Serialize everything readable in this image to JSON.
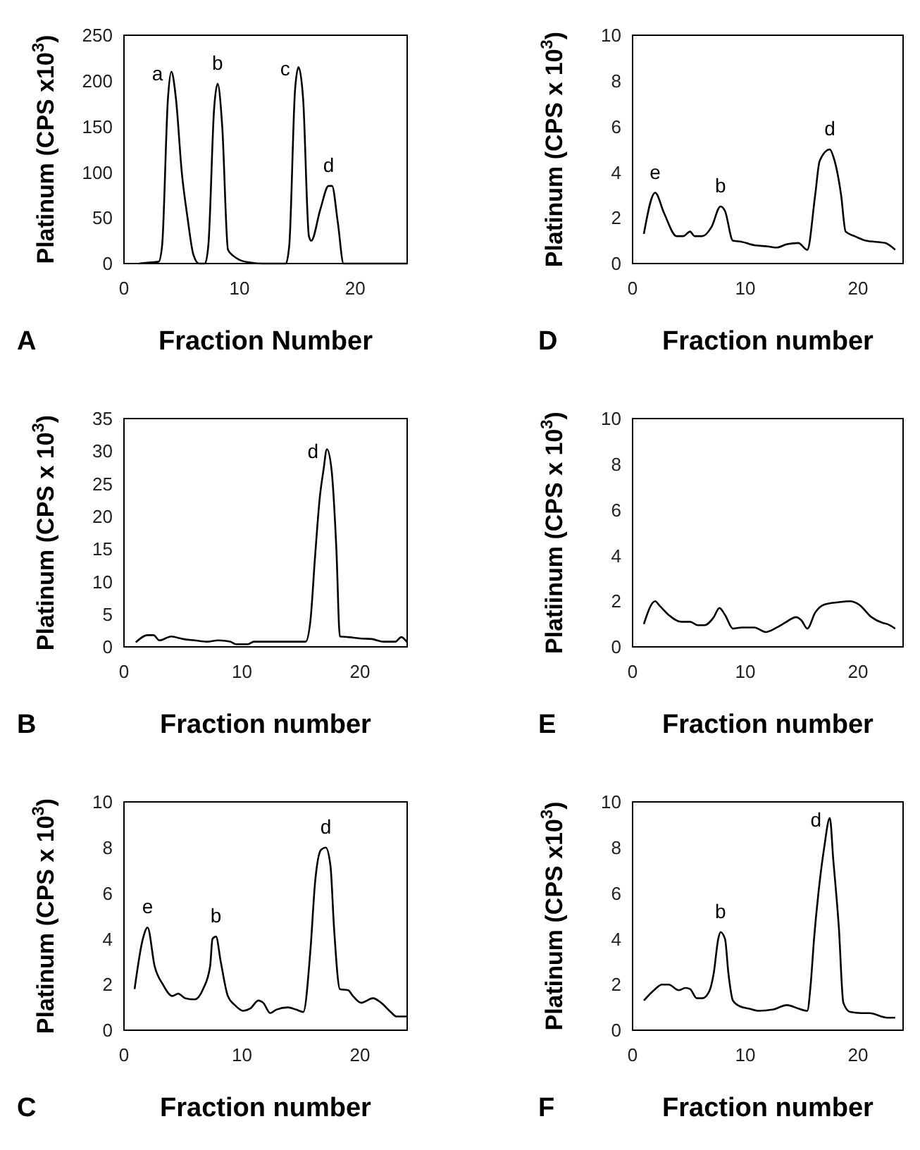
{
  "chart_data": [
    {
      "type": "line",
      "xlabel": "Fraction Number",
      "ylabel": "Platinum (CPS x10$^{3}$)",
      "xlim": [
        0,
        24.5
      ],
      "xticks": [
        0,
        10,
        20
      ],
      "ylim": [
        0,
        250
      ],
      "yticks": [
        0,
        50,
        100,
        150,
        200,
        250
      ],
      "grid": false,
      "annotations": [
        "A",
        {
          "text": "a",
          "x": 4.1,
          "y": 210
        },
        {
          "text": "b",
          "x": 8.1,
          "y": 197
        },
        {
          "text": "c",
          "x": 15.1,
          "y": 215
        },
        {
          "text": "d",
          "x": 17.7,
          "y": 85
        }
      ],
      "x": [
        1.3,
        2,
        3,
        3.3,
        3.8,
        4.1,
        4.5,
        5,
        5.5,
        6,
        6.5,
        7,
        7.3,
        7.8,
        8.1,
        8.5,
        9,
        9.5,
        10,
        11,
        12,
        14,
        14.3,
        14.8,
        15.1,
        15.5,
        16,
        16.2,
        17,
        17.7,
        18,
        18.5,
        19,
        24.5
      ],
      "series": [
        {
          "color": "#000000",
          "values": [
            0,
            1,
            2,
            20,
            180,
            210,
            180,
            100,
            50,
            10,
            0,
            0,
            20,
            170,
            197,
            150,
            15,
            8,
            4,
            1,
            0,
            0,
            20,
            190,
            215,
            180,
            30,
            25,
            60,
            85,
            85,
            45,
            0,
            0
          ]
        }
      ]
    },
    {
      "type": "line",
      "xlabel": "Fraction number",
      "ylabel": "Platinum (CPS x 10$^{3}$)",
      "xlim": [
        0,
        24
      ],
      "xticks": [
        0,
        10,
        20
      ],
      "ylim": [
        0,
        10
      ],
      "yticks": [
        0,
        2,
        4,
        6,
        8,
        10
      ],
      "grid": false,
      "annotations": [
        "D",
        {
          "text": "e",
          "x": 2,
          "y": 3.1
        },
        {
          "text": "b",
          "x": 7.8,
          "y": 2.5
        },
        {
          "text": "d",
          "x": 17.5,
          "y": 5.0
        }
      ],
      "x": [
        1,
        2,
        2.8,
        3.9,
        4.5,
        5.1,
        5.5,
        6.2,
        7,
        7.8,
        8.2,
        8.9,
        9.7,
        10.8,
        12,
        12.8,
        13.7,
        14.7,
        15.5,
        16.2,
        16.6,
        17.5,
        17.8,
        18.5,
        18.9,
        19.7,
        20.7,
        22.4,
        23.3
      ],
      "series": [
        {
          "color": "#000000",
          "values": [
            1.3,
            3.1,
            2.2,
            1.2,
            1.2,
            1.4,
            1.2,
            1.2,
            1.6,
            2.5,
            2.3,
            1.0,
            0.95,
            0.8,
            0.75,
            0.7,
            0.85,
            0.9,
            0.6,
            3.0,
            4.5,
            5.0,
            4.7,
            3.0,
            1.4,
            1.2,
            1.0,
            0.9,
            0.6
          ]
        }
      ]
    },
    {
      "type": "line",
      "xlabel": "Fraction number",
      "ylabel": "Platinum (CPS x 10$^{3}$)",
      "xlim": [
        0,
        24
      ],
      "xticks": [
        0,
        10,
        20
      ],
      "ylim": [
        0,
        35
      ],
      "yticks": [
        0,
        5,
        10,
        15,
        20,
        25,
        30,
        35
      ],
      "grid": false,
      "annotations": [
        "B",
        {
          "text": "d",
          "x": 17.2,
          "y": 30.3
        }
      ],
      "x": [
        1,
        2,
        2.5,
        3,
        4,
        5,
        6,
        7,
        8,
        9,
        9.5,
        10.5,
        11,
        15.4,
        15.8,
        16.2,
        16.6,
        16.9,
        17.2,
        17.6,
        18,
        18.3,
        19,
        20,
        21,
        22,
        23,
        23.5,
        24
      ],
      "series": [
        {
          "color": "#000000",
          "values": [
            0.7,
            1.8,
            1.8,
            1.0,
            1.6,
            1.2,
            1.0,
            0.8,
            1.0,
            0.8,
            0.4,
            0.4,
            0.8,
            0.8,
            4,
            14,
            23,
            27,
            30.3,
            27,
            15,
            1.6,
            1.5,
            1.3,
            1.2,
            0.8,
            0.8,
            1.5,
            0.7
          ]
        }
      ]
    },
    {
      "type": "line",
      "xlabel": "Fraction number",
      "ylabel": "Platiinum (CPS x 10$^{3}$)",
      "xlim": [
        0,
        24
      ],
      "xticks": [
        0,
        10,
        20
      ],
      "ylim": [
        0,
        10
      ],
      "yticks": [
        0,
        2,
        4,
        6,
        8,
        10
      ],
      "grid": false,
      "annotations": [
        "E"
      ],
      "x": [
        1,
        2,
        2.4,
        3.2,
        4.3,
        5.1,
        5.8,
        6.4,
        7.2,
        7.7,
        8.2,
        8.9,
        9.7,
        10.8,
        11.8,
        12.8,
        13.5,
        14.5,
        15,
        15.5,
        16.2,
        17,
        18.2,
        19.3,
        20.1,
        21.2,
        22.2,
        22.6,
        23.3
      ],
      "series": [
        {
          "color": "#000000",
          "values": [
            1.0,
            2.0,
            1.8,
            1.4,
            1.1,
            1.1,
            0.95,
            0.95,
            1.3,
            1.7,
            1.4,
            0.8,
            0.85,
            0.85,
            0.65,
            0.85,
            1.05,
            1.3,
            1.15,
            0.8,
            1.5,
            1.85,
            1.95,
            2.0,
            1.85,
            1.3,
            1.05,
            1.0,
            0.8
          ]
        }
      ]
    },
    {
      "type": "line",
      "xlabel": "Fraction number",
      "ylabel": "Platinum (CPS x 10$^{3}$)",
      "xlim": [
        0,
        24
      ],
      "xticks": [
        0,
        10,
        20
      ],
      "ylim": [
        0,
        10
      ],
      "yticks": [
        0,
        2,
        4,
        6,
        8,
        10
      ],
      "grid": false,
      "annotations": [
        "C",
        {
          "text": "e",
          "x": 2,
          "y": 4.5
        },
        {
          "text": "b",
          "x": 7.8,
          "y": 4.1
        },
        {
          "text": "d",
          "x": 17.1,
          "y": 8.0
        }
      ],
      "x": [
        0.9,
        1.6,
        2,
        2.6,
        3.3,
        4.1,
        4.6,
        5.2,
        6,
        6.7,
        7.3,
        7.5,
        7.8,
        8.2,
        8.8,
        9.4,
        10.1,
        10.7,
        11.4,
        11.8,
        12.4,
        12.9,
        13.9,
        14.6,
        15.2,
        15.8,
        16.2,
        16.7,
        17.1,
        17.5,
        17.8,
        18.3,
        19,
        19.4,
        20.1,
        21.1,
        21.8,
        22.6,
        23.1,
        24
      ],
      "series": [
        {
          "color": "#000000",
          "values": [
            1.8,
            4.0,
            4.5,
            2.8,
            2.0,
            1.5,
            1.6,
            1.4,
            1.35,
            1.8,
            2.8,
            4.0,
            4.1,
            3.0,
            1.5,
            1.1,
            0.85,
            0.95,
            1.3,
            1.2,
            0.75,
            0.9,
            1.0,
            0.9,
            0.8,
            3.5,
            6.5,
            7.9,
            8.0,
            7.2,
            4.5,
            1.8,
            1.75,
            1.5,
            1.2,
            1.4,
            1.2,
            0.8,
            0.6,
            0.6
          ]
        }
      ]
    },
    {
      "type": "line",
      "xlabel": "Fraction number",
      "ylabel": "Platinum (CPS x10$^{3}$)",
      "xlim": [
        0,
        24
      ],
      "xticks": [
        0,
        10,
        20
      ],
      "ylim": [
        0,
        10
      ],
      "yticks": [
        0,
        2,
        4,
        6,
        8,
        10
      ],
      "grid": false,
      "annotations": [
        "F",
        {
          "text": "b",
          "x": 7.8,
          "y": 4.3
        },
        {
          "text": "d",
          "x": 17.5,
          "y": 9.3
        }
      ],
      "x": [
        1,
        2,
        2.6,
        3.2,
        4.1,
        4.7,
        5.1,
        5.7,
        6.2,
        6.8,
        7.2,
        7.6,
        7.8,
        8.2,
        8.5,
        8.9,
        9.5,
        10.3,
        11.2,
        12.4,
        13.7,
        14.7,
        15.5,
        15.8,
        16.1,
        16.6,
        17,
        17.5,
        17.8,
        18.3,
        18.7,
        19.3,
        20.3,
        21,
        22.6,
        23.3
      ],
      "series": [
        {
          "color": "#000000",
          "values": [
            1.3,
            1.8,
            2.0,
            2.0,
            1.75,
            1.85,
            1.8,
            1.4,
            1.4,
            1.7,
            2.5,
            4.0,
            4.3,
            4.0,
            2.5,
            1.3,
            1.05,
            0.95,
            0.85,
            0.9,
            1.1,
            0.95,
            0.85,
            2.0,
            4.0,
            6.5,
            8.0,
            9.3,
            7.5,
            4.5,
            1.2,
            0.8,
            0.75,
            0.75,
            0.55,
            0.55
          ]
        }
      ]
    }
  ]
}
